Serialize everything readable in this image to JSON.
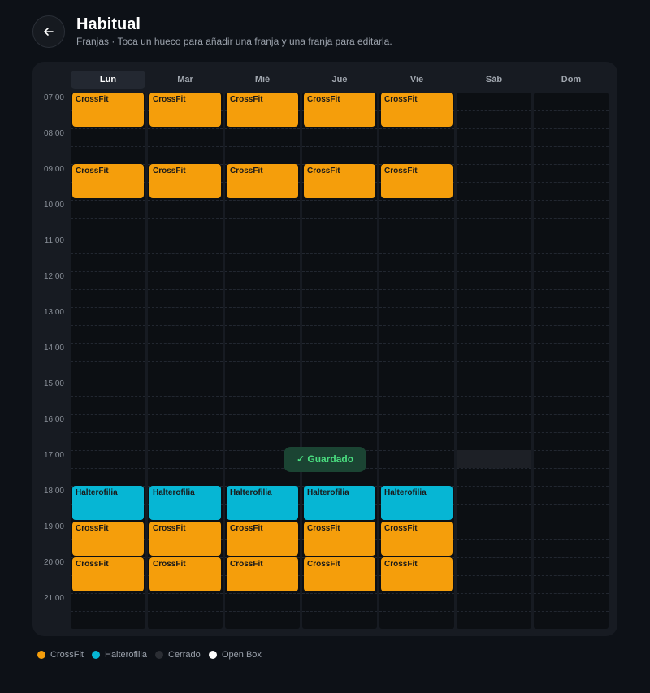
{
  "header": {
    "title": "Habitual",
    "subtitle": "Franjas · Toca un hueco para añadir una franja y una franja para editarla."
  },
  "calendar": {
    "days": [
      "Lun",
      "Mar",
      "Mié",
      "Jue",
      "Vie",
      "Sáb",
      "Dom"
    ],
    "selected_day": 0,
    "hours": [
      "07:00",
      "08:00",
      "09:00",
      "10:00",
      "11:00",
      "12:00",
      "13:00",
      "14:00",
      "15:00",
      "16:00",
      "17:00",
      "18:00",
      "19:00",
      "20:00",
      "21:00"
    ],
    "start_hour": 7,
    "end_hour": 22,
    "events": [
      {
        "day": 0,
        "start": 7,
        "end": 8,
        "label": "CrossFit",
        "legend": 0
      },
      {
        "day": 1,
        "start": 7,
        "end": 8,
        "label": "CrossFit",
        "legend": 0
      },
      {
        "day": 2,
        "start": 7,
        "end": 8,
        "label": "CrossFit",
        "legend": 0
      },
      {
        "day": 3,
        "start": 7,
        "end": 8,
        "label": "CrossFit",
        "legend": 0
      },
      {
        "day": 4,
        "start": 7,
        "end": 8,
        "label": "CrossFit",
        "legend": 0
      },
      {
        "day": 0,
        "start": 9,
        "end": 10,
        "label": "CrossFit",
        "legend": 0
      },
      {
        "day": 1,
        "start": 9,
        "end": 10,
        "label": "CrossFit",
        "legend": 0
      },
      {
        "day": 2,
        "start": 9,
        "end": 10,
        "label": "CrossFit",
        "legend": 0
      },
      {
        "day": 3,
        "start": 9,
        "end": 10,
        "label": "CrossFit",
        "legend": 0
      },
      {
        "day": 4,
        "start": 9,
        "end": 10,
        "label": "CrossFit",
        "legend": 0
      },
      {
        "day": 0,
        "start": 18,
        "end": 19,
        "label": "Halterofilia",
        "legend": 1
      },
      {
        "day": 1,
        "start": 18,
        "end": 19,
        "label": "Halterofilia",
        "legend": 1
      },
      {
        "day": 2,
        "start": 18,
        "end": 19,
        "label": "Halterofilia",
        "legend": 1
      },
      {
        "day": 3,
        "start": 18,
        "end": 19,
        "label": "Halterofilia",
        "legend": 1
      },
      {
        "day": 4,
        "start": 18,
        "end": 19,
        "label": "Halterofilia",
        "legend": 1
      },
      {
        "day": 0,
        "start": 19,
        "end": 20,
        "label": "CrossFit",
        "legend": 0
      },
      {
        "day": 1,
        "start": 19,
        "end": 20,
        "label": "CrossFit",
        "legend": 0
      },
      {
        "day": 2,
        "start": 19,
        "end": 20,
        "label": "CrossFit",
        "legend": 0
      },
      {
        "day": 3,
        "start": 19,
        "end": 20,
        "label": "CrossFit",
        "legend": 0
      },
      {
        "day": 4,
        "start": 19,
        "end": 20,
        "label": "CrossFit",
        "legend": 0
      },
      {
        "day": 0,
        "start": 20,
        "end": 21,
        "label": "CrossFit",
        "legend": 0
      },
      {
        "day": 1,
        "start": 20,
        "end": 21,
        "label": "CrossFit",
        "legend": 0
      },
      {
        "day": 2,
        "start": 20,
        "end": 21,
        "label": "CrossFit",
        "legend": 0
      },
      {
        "day": 3,
        "start": 20,
        "end": 21,
        "label": "CrossFit",
        "legend": 0
      },
      {
        "day": 4,
        "start": 20,
        "end": 21,
        "label": "CrossFit",
        "legend": 0
      }
    ],
    "closed": [
      {
        "day": 5,
        "start": 17,
        "end": 17.5
      }
    ]
  },
  "toast": "✓ Guardado",
  "legend": [
    {
      "label": "CrossFit",
      "color": "#f59e0b"
    },
    {
      "label": "Halterofilia",
      "color": "#06b6d4"
    },
    {
      "label": "Cerrado",
      "color": "#2b2e34"
    },
    {
      "label": "Open Box",
      "color": "#ffffff"
    }
  ]
}
